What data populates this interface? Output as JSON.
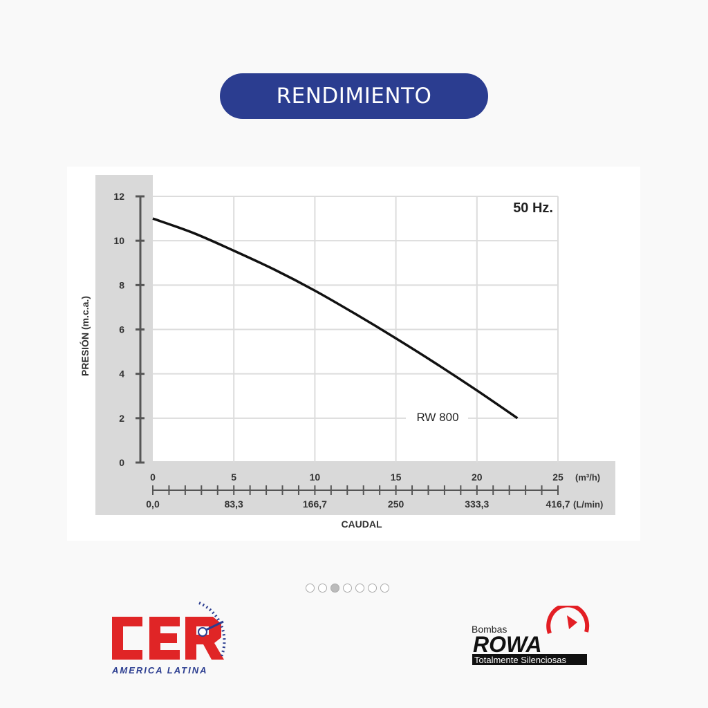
{
  "header": {
    "title": "RENDIMIENTO"
  },
  "chart_data": {
    "type": "line",
    "annotation": "50 Hz.",
    "ylabel": "PRESIÓN (m.c.a.)",
    "xlabel": "CAUDAL",
    "x_unit": "(m³/h)",
    "x2_unit": "(L/min)",
    "ylim": [
      0,
      12
    ],
    "xlim": [
      0,
      25
    ],
    "yticks": [
      "0",
      "2",
      "4",
      "6",
      "8",
      "10",
      "12"
    ],
    "xticks": [
      "0",
      "5",
      "10",
      "15",
      "20",
      "25"
    ],
    "x2ticks": [
      "0,0",
      "83,3",
      "166,7",
      "250",
      "333,3",
      "416,7"
    ],
    "grid": true,
    "series": [
      {
        "name": "RW 800",
        "x": [
          0,
          2.5,
          5,
          7.5,
          10,
          12.5,
          15,
          17.5,
          20,
          22.5
        ],
        "y": [
          11.0,
          10.35,
          9.55,
          8.7,
          7.75,
          6.7,
          5.6,
          4.45,
          3.25,
          2.0
        ]
      }
    ]
  },
  "carousel": {
    "count": 7,
    "active": 2
  },
  "logos": {
    "cer": {
      "text": "CER",
      "subtitle": "AMERICA LATINA"
    },
    "rowa": {
      "top": "Bombas",
      "name": "ROWA",
      "tagline": "Totalmente Silenciosas"
    }
  },
  "colors": {
    "accent": "#2b3d90",
    "cer_red": "#e02526",
    "rowa_red": "#e31e24"
  }
}
